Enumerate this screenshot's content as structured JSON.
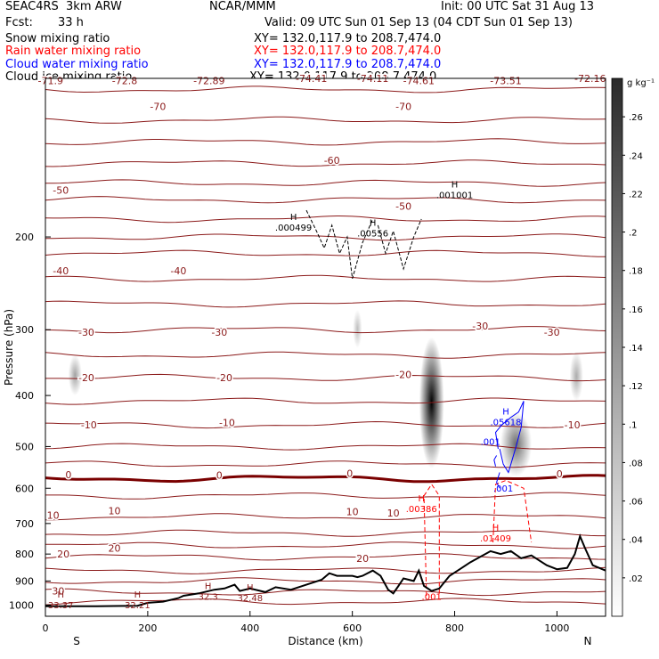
{
  "header": {
    "experiment": "SEAC4RS  3km ARW",
    "center": "NCAR/MMM",
    "init": "Init: 00 UTC Sat 31 Aug 13",
    "fcst_label": "Fcst:",
    "fcst_value": "33 h",
    "valid": "Valid: 09 UTC Sun 01 Sep 13 (04 CDT Sun 01 Sep 13)",
    "fields": [
      {
        "name": "Snow mixing ratio",
        "xy": "XY= 132.0,117.9 to 208.7,474.0",
        "color": "#000000"
      },
      {
        "name": "Rain water mixing ratio",
        "xy": "XY= 132.0,117.9 to 208.7,474.0",
        "color": "#ff0000"
      },
      {
        "name": "Cloud water mixing ratio",
        "xy": "XY= 132.0,117.9 to 208.7,474.0",
        "color": "#0000ff"
      },
      {
        "name": "Cloud ice mixing ratio",
        "xy": "XY= 132.0,117.9 to 208.7,474.0",
        "color": "#000000"
      }
    ]
  },
  "chart_data": {
    "type": "heatmap",
    "title": "",
    "xlabel": "Distance (km)",
    "ylabel": "Pressure (hPa)",
    "xlim": [
      0,
      1095
    ],
    "ylim": [
      1050,
      100
    ],
    "y_scale": "log",
    "x_ticks": [
      0,
      200,
      400,
      600,
      800,
      1000
    ],
    "y_ticks": [
      200,
      300,
      400,
      500,
      600,
      700,
      800,
      900,
      1000
    ],
    "direction_labels": {
      "left": "S",
      "right": "N"
    },
    "colorbar": {
      "unit": "g kg⁻¹",
      "ticks": [
        ".02",
        ".04",
        ".06",
        ".08",
        ".1",
        ".12",
        ".14",
        ".16",
        ".18",
        ".2",
        ".22",
        ".24",
        ".26"
      ],
      "range": [
        0,
        0.28
      ],
      "colors": [
        "#ffffff",
        "#000000"
      ]
    },
    "temperature_contours": {
      "color": "#8b1a1a",
      "zero_line_color": "#7a0000",
      "levels": [
        {
          "label": "-70",
          "p": 105
        },
        {
          "label": "-60",
          "p": 145
        },
        {
          "label": "-50",
          "p": 170
        },
        {
          "label": "-40",
          "p": 240
        },
        {
          "label": "-30",
          "p": 300
        },
        {
          "label": "-20",
          "p": 370
        },
        {
          "label": "-10",
          "p": 455
        },
        {
          "label": "0",
          "p": 575
        },
        {
          "label": "10",
          "p": 680
        },
        {
          "label": "20",
          "p": 810
        },
        {
          "label": "30",
          "p": 945
        }
      ],
      "text_labels": [
        {
          "text": "-71.9",
          "x": 10,
          "p": 101
        },
        {
          "text": "-72.8",
          "x": 155,
          "p": 101
        },
        {
          "text": "-72.89",
          "x": 320,
          "p": 101
        },
        {
          "text": "-74.41",
          "x": 520,
          "p": 100
        },
        {
          "text": "-74.11",
          "x": 640,
          "p": 100
        },
        {
          "text": "-74.61",
          "x": 730,
          "p": 101
        },
        {
          "text": "-73.51",
          "x": 900,
          "p": 101
        },
        {
          "text": "-72.16",
          "x": 1065,
          "p": 100
        },
        {
          "text": "-70",
          "x": 220,
          "p": 113
        },
        {
          "text": "-70",
          "x": 700,
          "p": 113
        },
        {
          "text": "-60",
          "x": 560,
          "p": 143
        },
        {
          "text": "-50",
          "x": 30,
          "p": 163
        },
        {
          "text": "-50",
          "x": 700,
          "p": 175
        },
        {
          "text": "-40",
          "x": 30,
          "p": 232
        },
        {
          "text": "-40",
          "x": 260,
          "p": 232
        },
        {
          "text": "-30",
          "x": 80,
          "p": 303
        },
        {
          "text": "-30",
          "x": 340,
          "p": 303
        },
        {
          "text": "-30",
          "x": 850,
          "p": 295
        },
        {
          "text": "-30",
          "x": 990,
          "p": 303
        },
        {
          "text": "-20",
          "x": 80,
          "p": 370
        },
        {
          "text": "-20",
          "x": 350,
          "p": 370
        },
        {
          "text": "-20",
          "x": 700,
          "p": 365
        },
        {
          "text": "-10",
          "x": 85,
          "p": 455
        },
        {
          "text": "-10",
          "x": 355,
          "p": 450
        },
        {
          "text": "-10",
          "x": 1030,
          "p": 455
        },
        {
          "text": "0",
          "x": 45,
          "p": 565
        },
        {
          "text": "0",
          "x": 340,
          "p": 567
        },
        {
          "text": "0",
          "x": 595,
          "p": 562
        },
        {
          "text": "0",
          "x": 1005,
          "p": 563
        },
        {
          "text": "10",
          "x": 15,
          "p": 675
        },
        {
          "text": "10",
          "x": 135,
          "p": 662
        },
        {
          "text": "10",
          "x": 600,
          "p": 665
        },
        {
          "text": "10",
          "x": 680,
          "p": 668
        },
        {
          "text": "20",
          "x": 35,
          "p": 800
        },
        {
          "text": "20",
          "x": 135,
          "p": 780
        },
        {
          "text": "20",
          "x": 620,
          "p": 815
        },
        {
          "text": "30",
          "x": 25,
          "p": 940
        }
      ],
      "maxima": [
        {
          "label": "H",
          "value": "33.37",
          "x": 30,
          "p": 990
        },
        {
          "label": "H",
          "value": "32.21",
          "x": 180,
          "p": 990
        },
        {
          "label": "H",
          "value": "32.3",
          "x": 318,
          "p": 955
        },
        {
          "label": "H",
          "value": "32.48",
          "x": 400,
          "p": 960
        }
      ]
    },
    "snow_shading": [
      {
        "x": 58,
        "p": 365,
        "w": 12,
        "h_p": [
          335,
          400
        ],
        "peak": 0.06
      },
      {
        "x": 610,
        "p": 300,
        "w": 8,
        "h_p": [
          275,
          325
        ],
        "peak": 0.03
      },
      {
        "x": 755,
        "p": 410,
        "w": 22,
        "h_p": [
          310,
          550
        ],
        "peak": 0.26
      },
      {
        "x": 920,
        "p": 480,
        "w": 28,
        "h_p": [
          430,
          570
        ],
        "peak": 0.12
      },
      {
        "x": 1038,
        "p": 375,
        "w": 12,
        "h_p": [
          330,
          410
        ],
        "peak": 0.05
      }
    ],
    "cloud_ice_max": [
      {
        "label": "H",
        "value": ".000499",
        "x": 485,
        "p": 190
      },
      {
        "label": "H",
        "value": ".00556",
        "x": 640,
        "p": 195
      },
      {
        "label": "H",
        "value": ".001001",
        "x": 800,
        "p": 165
      }
    ],
    "rain_max": [
      {
        "label": "H",
        "value": ".00386",
        "x": 735,
        "p": 650
      },
      {
        "label": "H",
        "value": ".01409",
        "x": 880,
        "p": 740
      },
      {
        "label": "",
        "value": ".001",
        "x": 755,
        "p": 955
      }
    ],
    "cloud_water_max": [
      {
        "label": "H",
        "value": ".05618",
        "x": 900,
        "p": 445
      },
      {
        "label": "",
        "value": ".001",
        "x": 870,
        "p": 485
      },
      {
        "label": "",
        "value": ".001",
        "x": 895,
        "p": 595
      }
    ],
    "terrain": {
      "x": [
        0,
        100,
        180,
        200,
        230,
        260,
        270,
        300,
        330,
        350,
        370,
        380,
        400,
        430,
        450,
        480,
        510,
        540,
        555,
        570,
        600,
        610,
        620,
        640,
        655,
        670,
        680,
        690,
        700,
        720,
        730,
        740,
        755,
        770,
        790,
        810,
        830,
        850,
        870,
        890,
        910,
        930,
        950,
        980,
        1000,
        1020,
        1035,
        1045,
        1055,
        1070,
        1095
      ],
      "p": [
        1005,
        1005,
        1003,
        990,
        985,
        970,
        960,
        950,
        935,
        930,
        915,
        940,
        930,
        945,
        925,
        935,
        915,
        895,
        870,
        880,
        880,
        885,
        880,
        860,
        880,
        935,
        950,
        920,
        890,
        900,
        860,
        920,
        940,
        930,
        880,
        855,
        830,
        810,
        790,
        800,
        790,
        815,
        805,
        840,
        855,
        850,
        800,
        740,
        780,
        840,
        860
      ]
    }
  }
}
